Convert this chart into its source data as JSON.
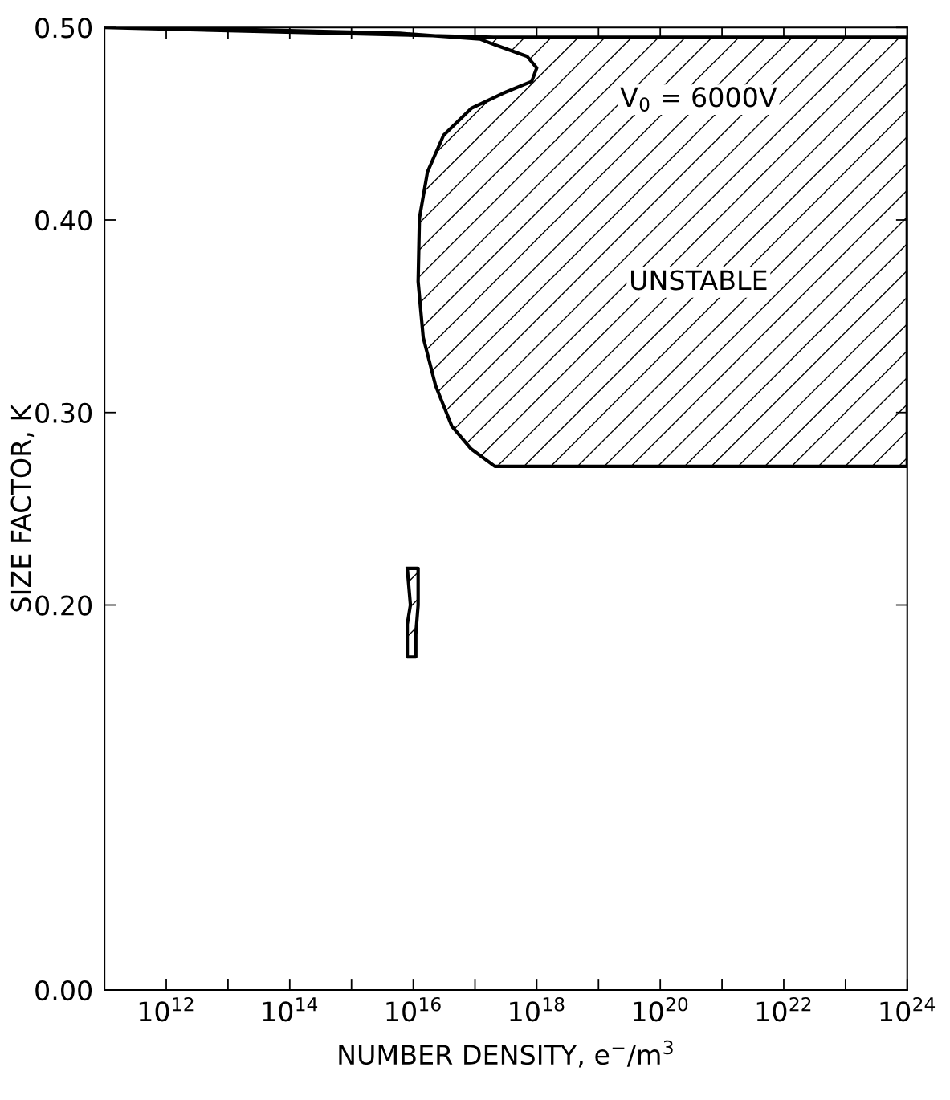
{
  "chart_data": {
    "type": "area",
    "xlabel": "NUMBER DENSITY, e$^{−}$/m$^{3}$",
    "ylabel": "SIZE FACTOR, K",
    "log": "x",
    "xlim": [
      100000000000.0,
      1e+24
    ],
    "xticks": [
      {
        "value": 1000000000000.0,
        "label": "10$^{12}$"
      },
      {
        "value": 10000000000000.0,
        "label": null
      },
      {
        "value": 100000000000000.0,
        "label": "10$^{14}$"
      },
      {
        "value": 1000000000000000.0,
        "label": null
      },
      {
        "value": 1e+16,
        "label": "10$^{16}$"
      },
      {
        "value": 1e+17,
        "label": null
      },
      {
        "value": 1e+18,
        "label": "10$^{18}$"
      },
      {
        "value": 1e+19,
        "label": null
      },
      {
        "value": 1e+20,
        "label": "10$^{20}$"
      },
      {
        "value": 1e+21,
        "label": null
      },
      {
        "value": 1e+22,
        "label": "10$^{22}$"
      },
      {
        "value": 1e+23,
        "label": null
      },
      {
        "value": 1e+24,
        "label": "10$^{24}$"
      }
    ],
    "ylim": [
      0,
      0.5
    ],
    "yticks": [
      {
        "value": 0,
        "label": "0.00"
      },
      {
        "value": 0.2,
        "label": "0.20"
      },
      {
        "value": 0.3,
        "label": "0.30"
      },
      {
        "value": 0.4,
        "label": "0.40"
      },
      {
        "value": 0.5,
        "label": "0.50"
      }
    ],
    "grid": false,
    "legend": false,
    "line_style": "solid",
    "marker": "none",
    "series": [
      {
        "color": "#000000",
        "x": [
          100000000000.0,
          15000000000000.0,
          6000000000000000.0,
          1.2e+17,
          2.1e+17,
          7e+17,
          1e+18,
          8.3e+17,
          2.9e+17,
          8.7e+16,
          3.1e+16,
          1.7e+16,
          1.26e+16,
          1.2e+16,
          1.45e+16,
          2.3e+16,
          4.2e+16,
          8.7e+16,
          2.1e+17,
          1e+24,
          1e+24,
          2e+17,
          100000000000.0
        ],
        "values": [
          0.5,
          0.499,
          0.497,
          0.494,
          0.491,
          0.485,
          0.479,
          0.472,
          0.466,
          0.458,
          0.444,
          0.425,
          0.401,
          0.368,
          0.339,
          0.314,
          0.293,
          0.281,
          0.272,
          0.272,
          0.495,
          0.495,
          0.5
        ]
      },
      {
        "color": "#000000",
        "x": [
          8000000000000000.0,
          1.2e+16,
          1.2e+16,
          1.1e+16,
          1.1e+16,
          8000000000000000.0,
          8000000000000000.0,
          9000000000000000.0,
          8000000000000000.0
        ],
        "values": [
          0.219,
          0.219,
          0.2,
          0.185,
          0.173,
          0.173,
          0.19,
          0.2,
          0.219
        ]
      }
    ],
    "annotations": [
      "V$_{0}$ = 6000V",
      "UNSTABLE"
    ]
  }
}
